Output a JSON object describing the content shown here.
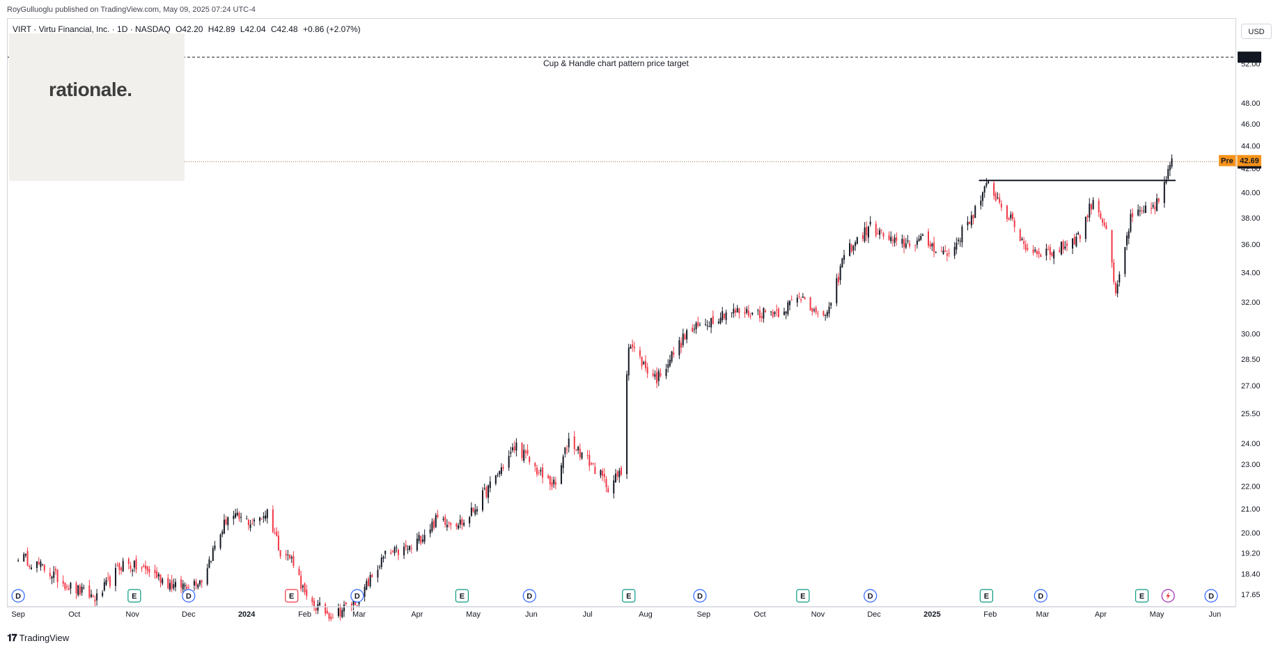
{
  "header": {
    "published": "RoyGulluoglu published on TradingView.com, May 09, 2025 07:24 UTC-4"
  },
  "legend": {
    "symbol": "VIRT · Virtu Financial, Inc. · 1D · NASDAQ",
    "open": "O42.20",
    "high": "H42.89",
    "low": "L42.04",
    "close": "C42.48",
    "change": "+0.86 (+2.07%)"
  },
  "logo": {
    "text": "rationale."
  },
  "currency_button": "USD",
  "footer": {
    "brand": "TradingView",
    "icon": "tradingview-logo-icon"
  },
  "colors": {
    "up": "#131722",
    "down": "#f23645",
    "accent": "#f7931a",
    "label_bg": "#131722"
  },
  "chart_data": {
    "type": "candlestick",
    "title": "",
    "xlabel": "",
    "ylabel": "",
    "y_scale": "log",
    "ylim": [
      17.2,
      55
    ],
    "y_ticks": [
      "17.65",
      "18.40",
      "19.20",
      "20.00",
      "21.00",
      "22.00",
      "23.00",
      "24.00",
      "25.50",
      "27.00",
      "28.50",
      "30.00",
      "32.00",
      "34.00",
      "36.00",
      "38.00",
      "40.00",
      "42.00",
      "44.00",
      "46.00",
      "48.00",
      "52.00"
    ],
    "x_ticks": [
      "Sep",
      "Oct",
      "Nov",
      "Dec",
      "2024",
      "Feb",
      "Mar",
      "Apr",
      "May",
      "Jun",
      "Jul",
      "Aug",
      "Sep",
      "Oct",
      "Nov",
      "Dec",
      "2025",
      "Feb",
      "Mar",
      "Apr",
      "May",
      "Jun"
    ],
    "price_path": [
      [
        "2023-09-01",
        19.1
      ],
      [
        "2023-09-15",
        18.6
      ],
      [
        "2023-09-29",
        17.9
      ],
      [
        "2023-10-13",
        17.5
      ],
      [
        "2023-10-27",
        18.8
      ],
      [
        "2023-11-10",
        18.5
      ],
      [
        "2023-11-24",
        17.9
      ],
      [
        "2023-12-08",
        18.2
      ],
      [
        "2023-12-22",
        20.7
      ],
      [
        "2024-01-05",
        20.4
      ],
      [
        "2024-01-12",
        20.9
      ],
      [
        "2024-01-19",
        19.3
      ],
      [
        "2024-01-26",
        18.9
      ],
      [
        "2024-02-02",
        17.4
      ],
      [
        "2024-02-16",
        16.9
      ],
      [
        "2024-03-01",
        17.5
      ],
      [
        "2024-03-15",
        19.1
      ],
      [
        "2024-03-29",
        19.4
      ],
      [
        "2024-04-12",
        20.6
      ],
      [
        "2024-04-26",
        20.4
      ],
      [
        "2024-05-10",
        22.0
      ],
      [
        "2024-05-24",
        23.9
      ],
      [
        "2024-06-07",
        22.4
      ],
      [
        "2024-06-14",
        22.0
      ],
      [
        "2024-06-21",
        24.2
      ],
      [
        "2024-07-05",
        22.8
      ],
      [
        "2024-07-12",
        22.0
      ],
      [
        "2024-07-19",
        22.6
      ],
      [
        "2024-07-23",
        29.5
      ],
      [
        "2024-08-01",
        28.0
      ],
      [
        "2024-08-07",
        27.4
      ],
      [
        "2024-08-23",
        30.0
      ],
      [
        "2024-09-13",
        31.4
      ],
      [
        "2024-09-27",
        31.3
      ],
      [
        "2024-10-11",
        31.4
      ],
      [
        "2024-10-25",
        32.5
      ],
      [
        "2024-11-01",
        30.9
      ],
      [
        "2024-11-08",
        31.6
      ],
      [
        "2024-11-15",
        35.3
      ],
      [
        "2024-11-29",
        37.3
      ],
      [
        "2024-12-13",
        36.0
      ],
      [
        "2024-12-27",
        36.3
      ],
      [
        "2025-01-10",
        35.2
      ],
      [
        "2025-01-24",
        38.6
      ],
      [
        "2025-01-31",
        40.7
      ],
      [
        "2025-02-07",
        39.0
      ],
      [
        "2025-02-21",
        35.6
      ],
      [
        "2025-03-07",
        35.4
      ],
      [
        "2025-03-21",
        36.7
      ],
      [
        "2025-03-28",
        39.5
      ],
      [
        "2025-04-04",
        37.2
      ],
      [
        "2025-04-09",
        32.3
      ],
      [
        "2025-04-17",
        37.9
      ],
      [
        "2025-04-25",
        38.5
      ],
      [
        "2025-05-02",
        39.3
      ],
      [
        "2025-05-09",
        42.5
      ]
    ],
    "last_price": "42.48",
    "premarket": {
      "label": "Pre",
      "value": "42.69"
    },
    "target": {
      "value": "52.70",
      "label": "Cup & Handle chart pattern price target"
    },
    "resistance_level": 41.0,
    "events": [
      {
        "date": "2023-09-01",
        "type": "D"
      },
      {
        "date": "2023-11-02",
        "type": "E"
      },
      {
        "date": "2023-12-01",
        "type": "D"
      },
      {
        "date": "2024-01-25",
        "type": "E"
      },
      {
        "date": "2024-02-29",
        "type": "D"
      },
      {
        "date": "2024-04-25",
        "type": "E"
      },
      {
        "date": "2024-05-31",
        "type": "D"
      },
      {
        "date": "2024-07-23",
        "type": "E"
      },
      {
        "date": "2024-08-30",
        "type": "D"
      },
      {
        "date": "2024-10-24",
        "type": "E"
      },
      {
        "date": "2024-11-29",
        "type": "D"
      },
      {
        "date": "2025-01-30",
        "type": "E"
      },
      {
        "date": "2025-02-28",
        "type": "D"
      },
      {
        "date": "2025-04-23",
        "type": "E"
      },
      {
        "date": "2025-05-07",
        "type": "flash"
      },
      {
        "date": "2025-05-30",
        "type": "D"
      }
    ]
  }
}
